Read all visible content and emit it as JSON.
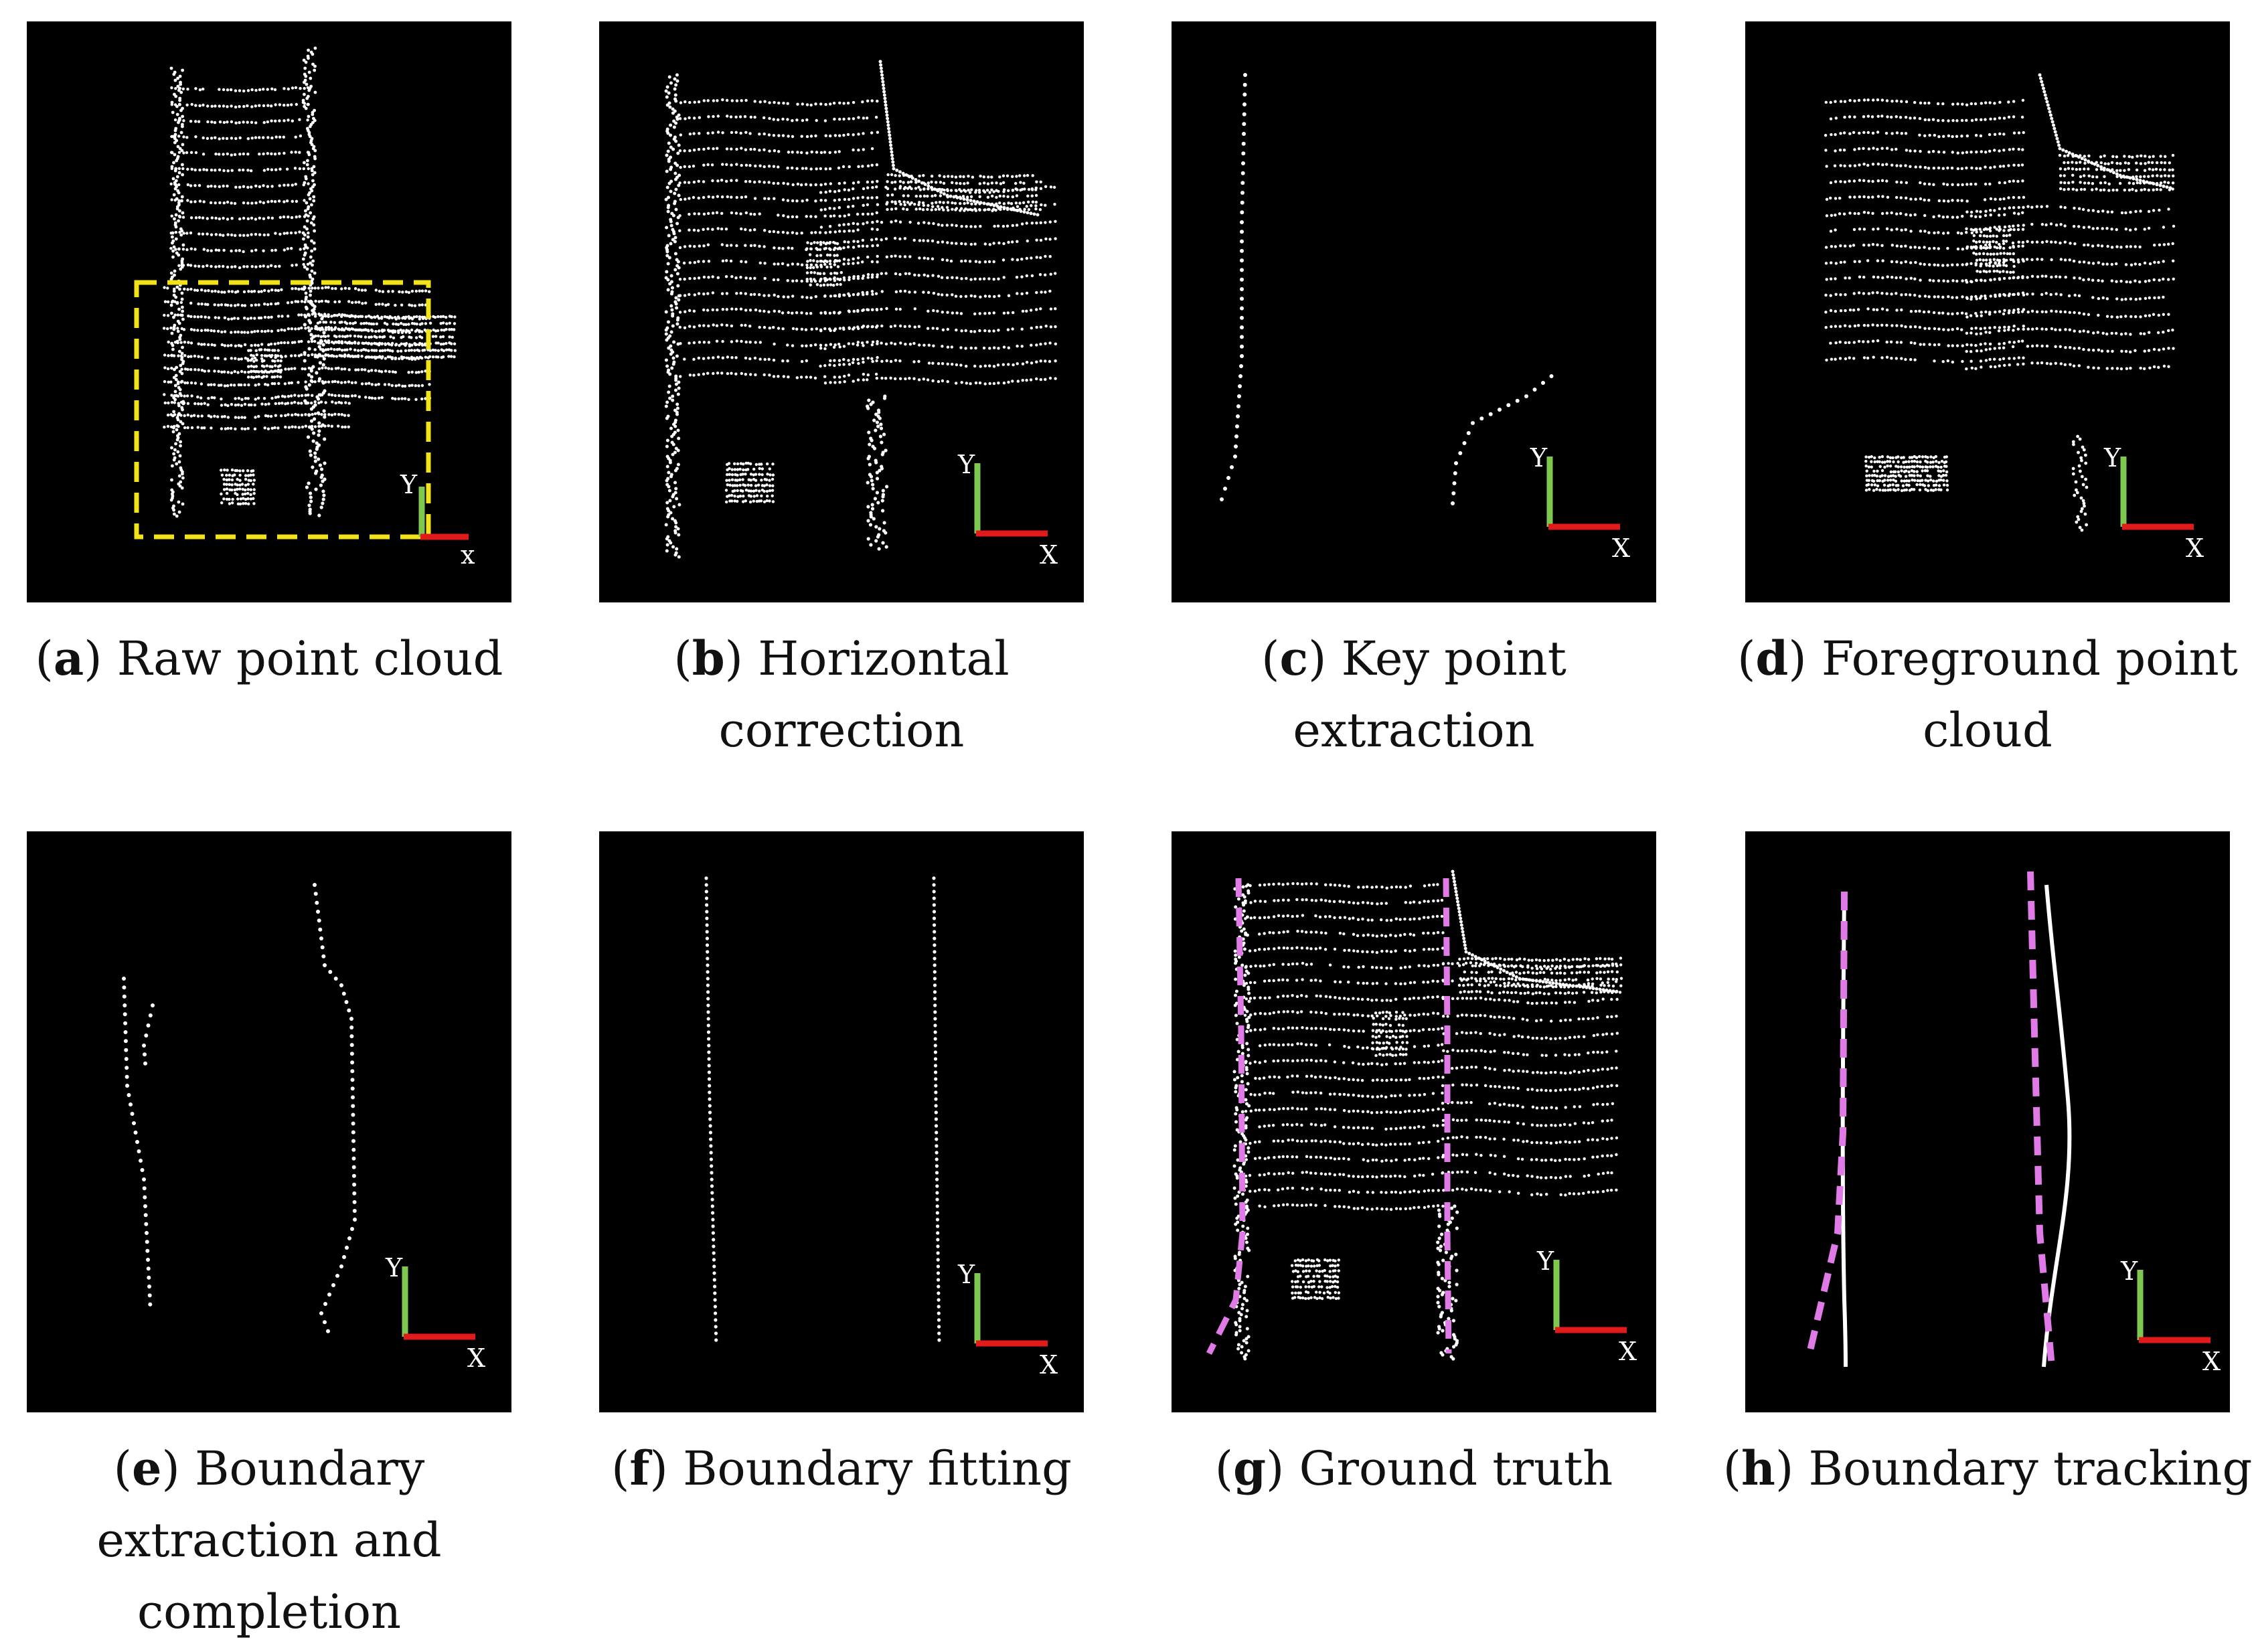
{
  "colors": {
    "panel_background": "#000000",
    "points": "#ffffff",
    "axis_x": "#e21a1a",
    "axis_y": "#7ec850",
    "roi_box": "#f2e21a",
    "boundary_dashed": "#e07ae6",
    "tracking_solid": "#ffffff"
  },
  "axes": {
    "y_label": "Y",
    "x_label": "X",
    "x_label_lower": "x"
  },
  "panels": [
    {
      "letter": "a",
      "caption_line1": "Raw point cloud",
      "caption_line2": "",
      "caption_line3": ""
    },
    {
      "letter": "b",
      "caption_line1": "Horizontal",
      "caption_line2": "correction",
      "caption_line3": ""
    },
    {
      "letter": "c",
      "caption_line1": "Key point",
      "caption_line2": "extraction",
      "caption_line3": ""
    },
    {
      "letter": "d",
      "caption_line1": "Foreground point",
      "caption_line2": "cloud",
      "caption_line3": ""
    },
    {
      "letter": "e",
      "caption_line1": "Boundary",
      "caption_line2": "extraction and",
      "caption_line3": "completion"
    },
    {
      "letter": "f",
      "caption_line1": "Boundary fitting",
      "caption_line2": "",
      "caption_line3": ""
    },
    {
      "letter": "g",
      "caption_line1": "Ground truth",
      "caption_line2": "",
      "caption_line3": ""
    },
    {
      "letter": "h",
      "caption_line1": "Boundary tracking",
      "caption_line2": "",
      "caption_line3": ""
    }
  ]
}
